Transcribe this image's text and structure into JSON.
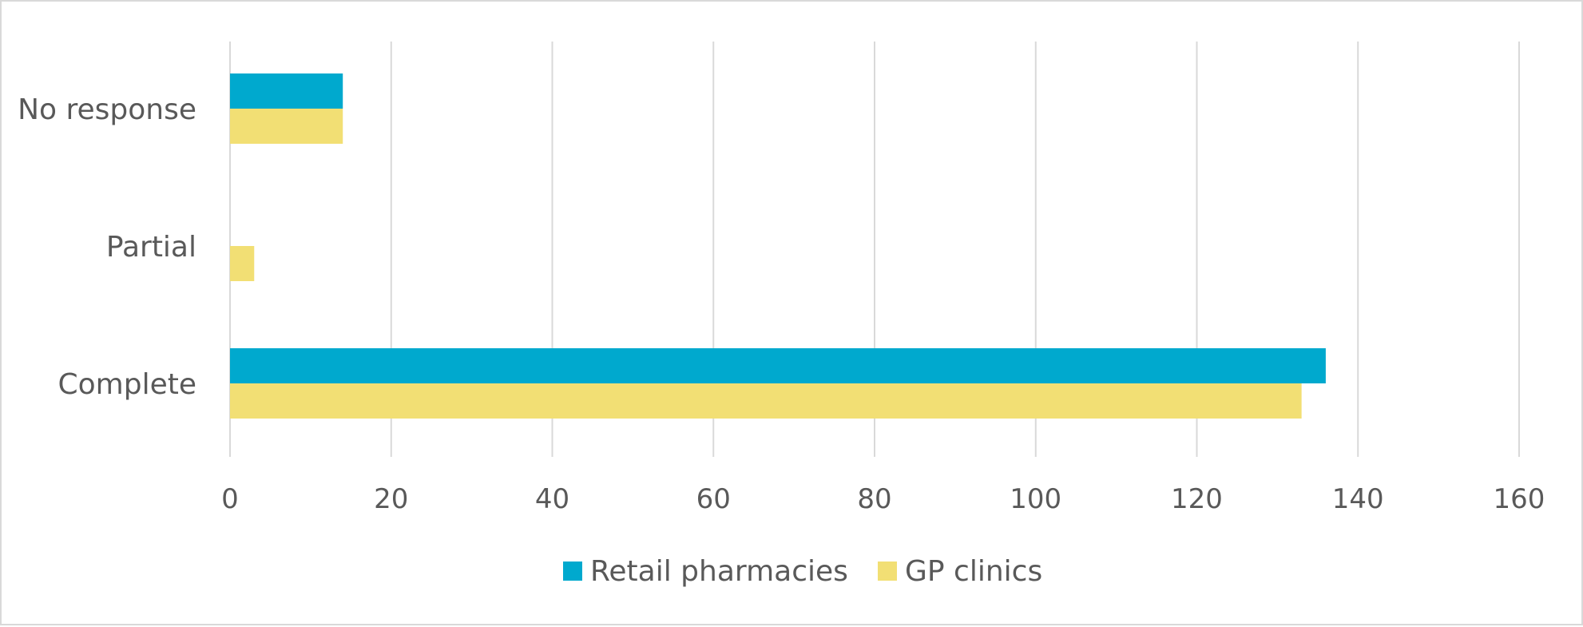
{
  "chart_data": {
    "type": "bar",
    "orientation": "horizontal",
    "categories": [
      "Complete",
      "Partial",
      "No response"
    ],
    "series": [
      {
        "name": "Retail pharmacies",
        "color": "#00A9CE",
        "values": [
          136,
          0,
          14
        ]
      },
      {
        "name": "GP clinics",
        "color": "#F2DF74",
        "values": [
          133,
          3,
          14
        ]
      }
    ],
    "xlim": [
      0,
      160
    ],
    "xticks": [
      0,
      20,
      40,
      60,
      80,
      100,
      120,
      140,
      160
    ],
    "grid": "vertical",
    "legend_position": "bottom",
    "title": "",
    "xlabel": "",
    "ylabel": ""
  }
}
